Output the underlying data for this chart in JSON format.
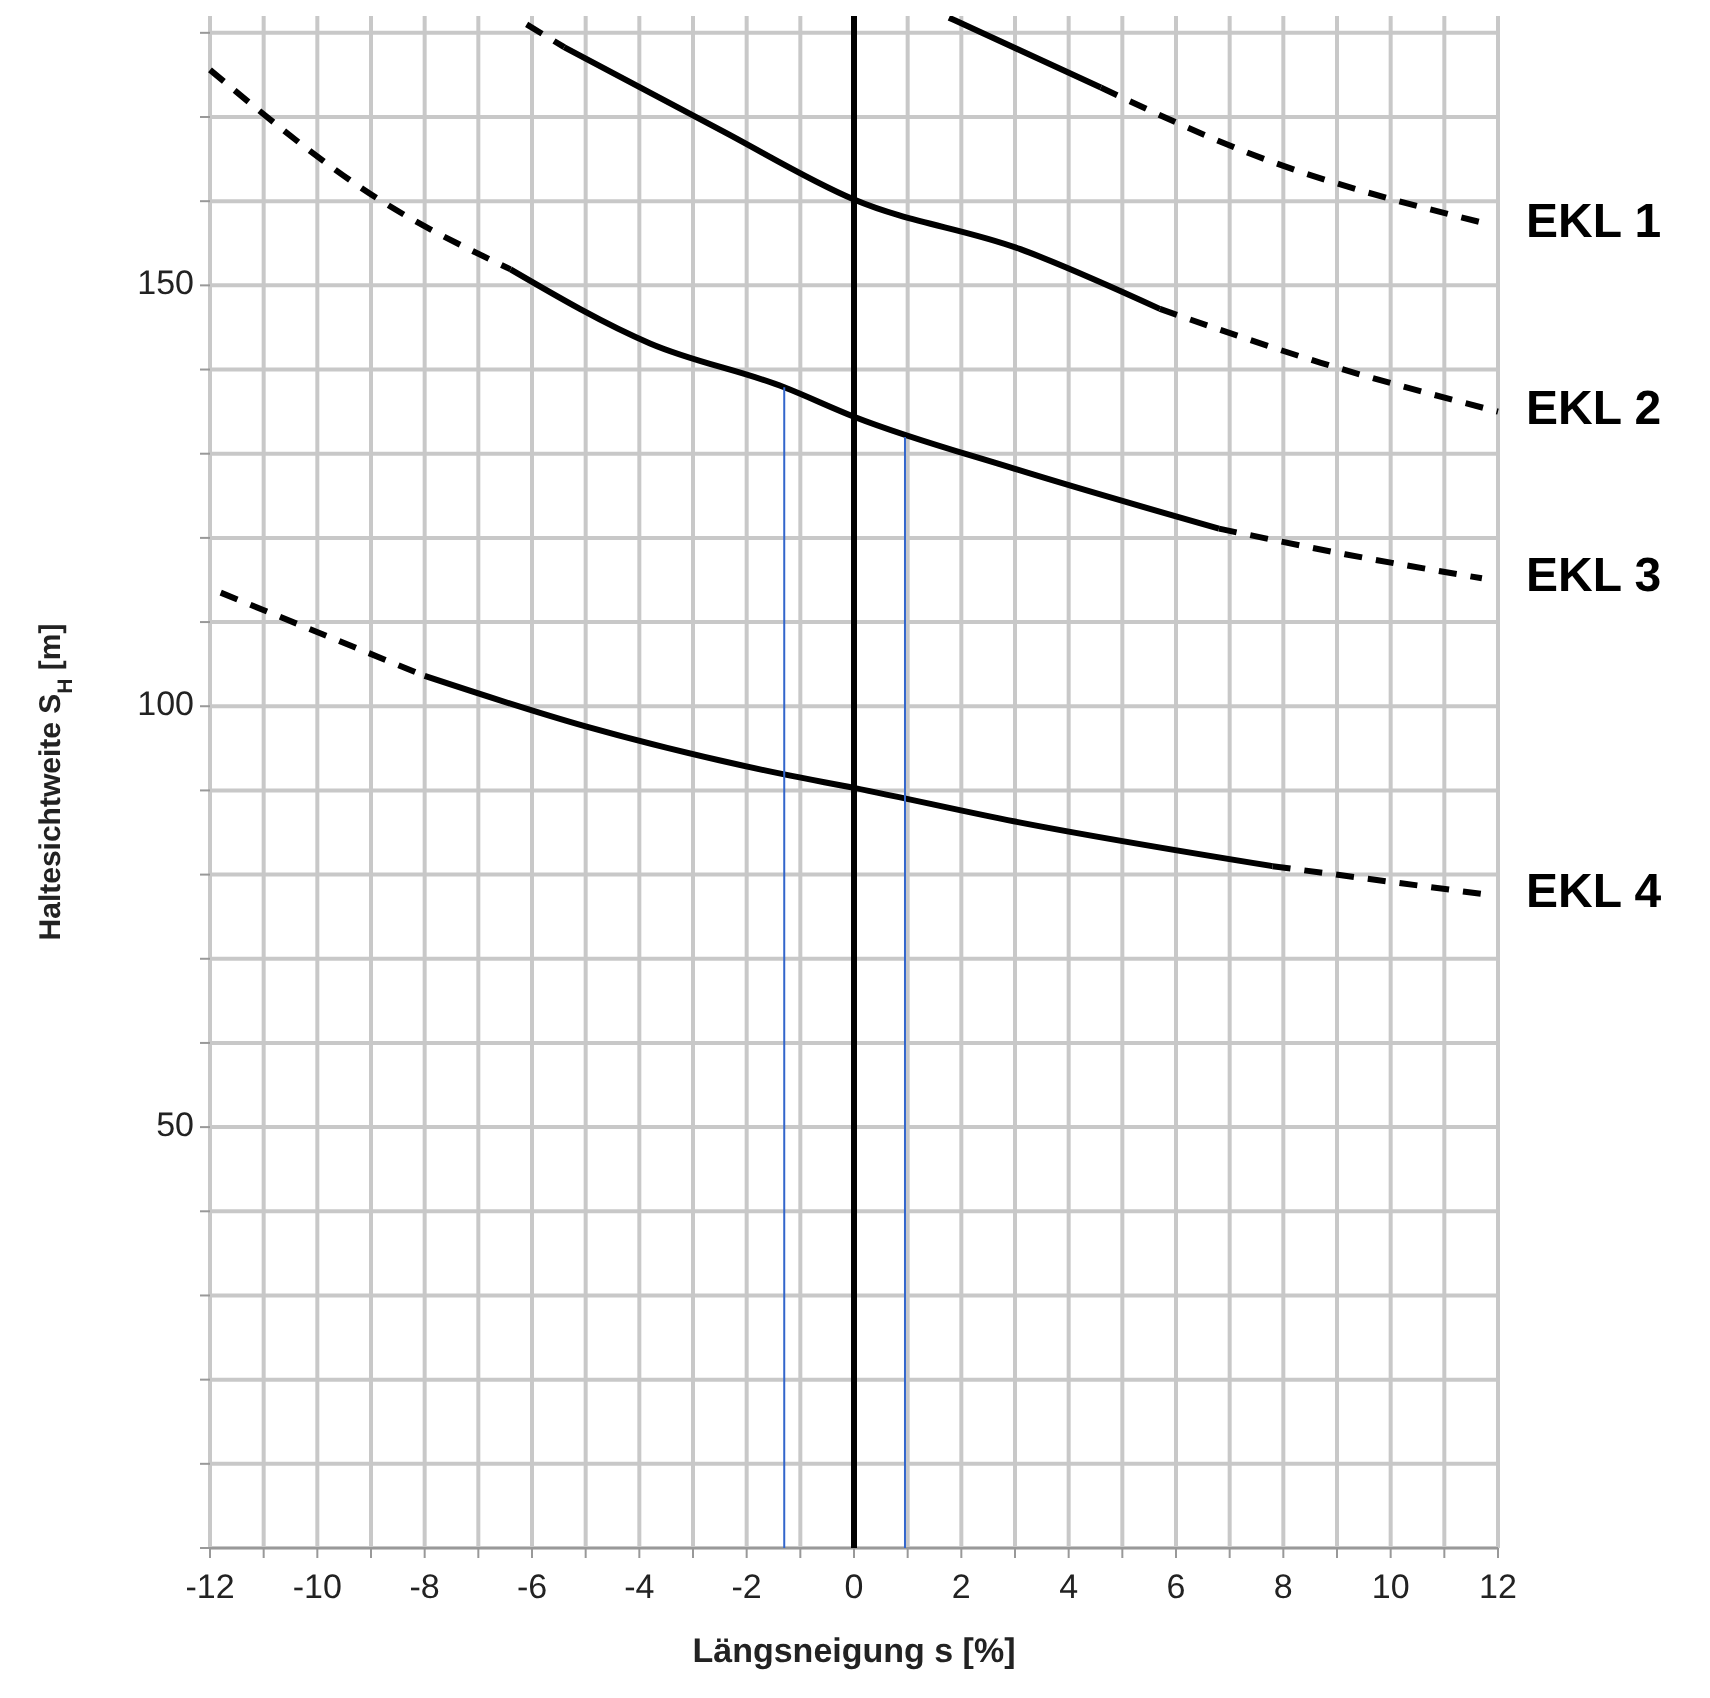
{
  "chart_data": {
    "type": "line",
    "xlabel": "Längsneigung s [%]",
    "ylabel": "Haltesichtweite S$_{H}$ [m]",
    "xlim": [
      -12,
      12
    ],
    "xticks": [
      -12,
      {
        "value": -11,
        "label": null
      },
      -10,
      {
        "value": -9,
        "label": null
      },
      -8,
      {
        "value": -7,
        "label": null
      },
      -6,
      {
        "value": -5,
        "label": null
      },
      -4,
      {
        "value": -3,
        "label": null
      },
      -2,
      {
        "value": -1,
        "label": null
      },
      0,
      {
        "value": 1,
        "label": null
      },
      2,
      {
        "value": 3,
        "label": null
      },
      4,
      {
        "value": 5,
        "label": null
      },
      6,
      {
        "value": 7,
        "label": null
      },
      8,
      {
        "value": 9,
        "label": null
      },
      10,
      {
        "value": 11,
        "label": null
      },
      12
    ],
    "ylim": [
      0,
      182
    ],
    "yticks": [
      {
        "value": 0,
        "label": null
      },
      {
        "value": 10,
        "label": null
      },
      {
        "value": 20,
        "label": null
      },
      {
        "value": 30,
        "label": null
      },
      {
        "value": 40,
        "label": null
      },
      50,
      {
        "value": 60,
        "label": null
      },
      {
        "value": 70,
        "label": null
      },
      {
        "value": 80,
        "label": null
      },
      {
        "value": 90,
        "label": null
      },
      100,
      {
        "value": 110,
        "label": null
      },
      {
        "value": 120,
        "label": null
      },
      {
        "value": 130,
        "label": null
      },
      {
        "value": 140,
        "label": null
      },
      150,
      {
        "value": 160,
        "label": null
      },
      {
        "value": 170,
        "label": null
      },
      {
        "value": 180,
        "label": null
      }
    ],
    "grid": true,
    "ref_lines": [
      {
        "axis": "x",
        "value": 0,
        "color": "#000000"
      }
    ],
    "series": [
      {
        "color": "#000000",
        "line_style": "solid",
        "x": [
          1.77,
          3.0,
          4.6
        ],
        "values": [
          181.8,
          178.2,
          173.5
        ]
      },
      {
        "name": "EKL 1",
        "color": "#000000",
        "line_style": "dashed",
        "x": [
          4.6,
          7.4,
          11.8
        ],
        "values": [
          173.5,
          165.6,
          157.3
        ]
      },
      {
        "color": "#000000",
        "line_style": "dashed",
        "x": [
          -6.1,
          -5.4
        ],
        "values": [
          181,
          178.3
        ]
      },
      {
        "color": "#000000",
        "line_style": "solid",
        "x": [
          -5.4,
          -2.5,
          0,
          3.1,
          5.7
        ],
        "values": [
          178.3,
          168.5,
          160.2,
          154.3,
          147.2
        ]
      },
      {
        "name": "EKL 2",
        "color": "#000000",
        "line_style": "dashed",
        "x": [
          5.7,
          8.7,
          12
        ],
        "values": [
          147.2,
          140.8,
          135
        ]
      },
      {
        "color": "#000000",
        "line_style": "dashed",
        "x": [
          -12,
          -8.9,
          -6.4
        ],
        "values": [
          175.6,
          160.4,
          151.9
        ]
      },
      {
        "color": "#000000",
        "line_style": "solid",
        "x": [
          -6.4,
          -3.8,
          -1.3,
          0,
          3,
          6.8
        ],
        "values": [
          151.9,
          143.1,
          137.9,
          134.4,
          128.2,
          121.1
        ]
      },
      {
        "name": "EKL 3",
        "color": "#000000",
        "line_style": "dashed",
        "x": [
          6.8,
          9.2,
          11.7
        ],
        "values": [
          121.1,
          118,
          115.2
        ]
      },
      {
        "color": "#000000",
        "line_style": "dashed",
        "x": [
          -11.8,
          -8
        ],
        "values": [
          113.5,
          103.6
        ]
      },
      {
        "color": "#000000",
        "line_style": "solid",
        "x": [
          -8,
          -5,
          -1.3,
          0,
          3,
          7.8
        ],
        "values": [
          103.6,
          97.6,
          91.9,
          90.3,
          86.3,
          81.0
        ]
      },
      {
        "name": "EKL 4",
        "color": "#000000",
        "line_style": "dashed",
        "x": [
          7.8,
          11.7
        ],
        "values": [
          81,
          77.7
        ]
      },
      {
        "color": "#3366cc",
        "line_style": "solid",
        "x": [
          -1.3,
          -1.3
        ],
        "values": [
          0,
          137.9
        ]
      },
      {
        "color": "#3366cc",
        "line_style": "solid",
        "x": [
          0.95,
          0.95
        ],
        "values": [
          0,
          132
        ]
      }
    ]
  }
}
